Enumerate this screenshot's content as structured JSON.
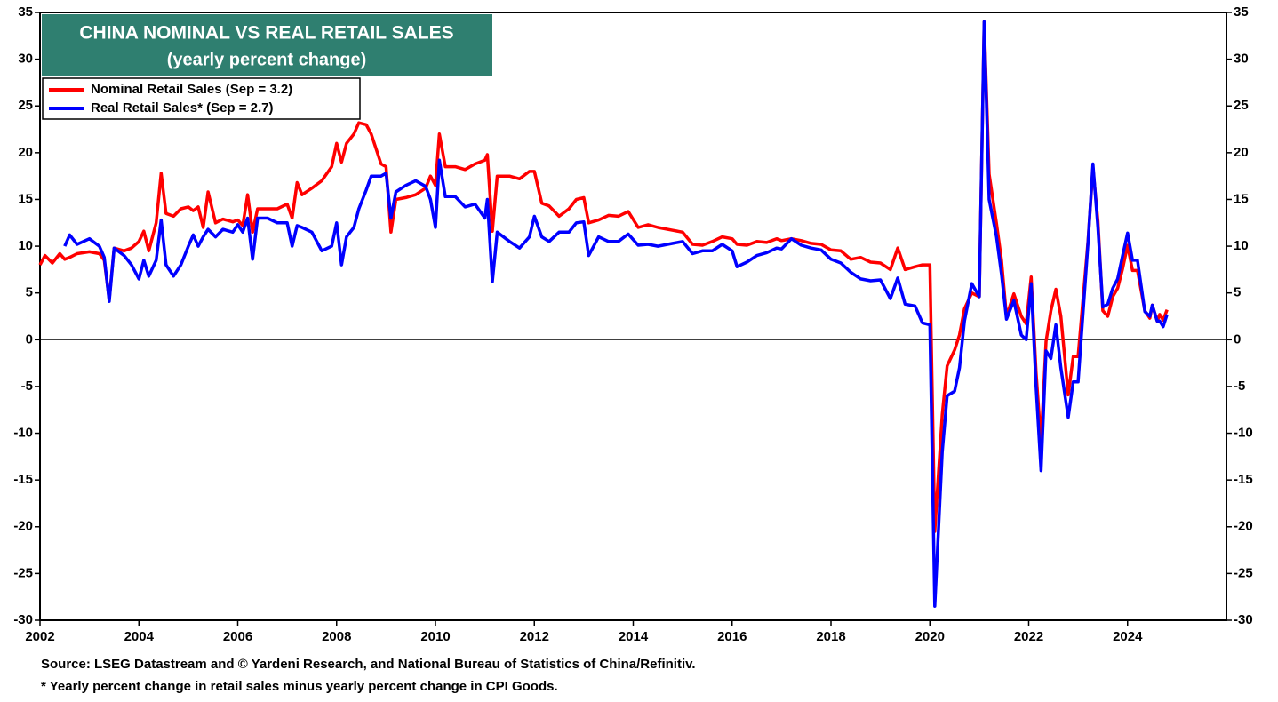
{
  "chart_data": {
    "type": "line",
    "title": "CHINA NOMINAL VS REAL RETAIL SALES",
    "subtitle": "(yearly percent change)",
    "notes": [
      "Source: LSEG Datastream and © Yardeni Research, and National Bureau of Statistics of China/Refinitiv.",
      "* Yearly percent change in retail sales minus yearly percent change in CPI Goods."
    ],
    "x": [
      2002.0,
      2002.1,
      2002.25,
      2002.4,
      2002.5,
      2002.6,
      2002.75,
      2003.0,
      2003.2,
      2003.3,
      2003.4,
      2003.5,
      2003.7,
      2003.85,
      2004.0,
      2004.1,
      2004.2,
      2004.35,
      2004.45,
      2004.55,
      2004.7,
      2004.85,
      2005.0,
      2005.1,
      2005.2,
      2005.3,
      2005.4,
      2005.55,
      2005.7,
      2005.9,
      2006.0,
      2006.1,
      2006.2,
      2006.3,
      2006.4,
      2006.6,
      2006.8,
      2007.0,
      2007.1,
      2007.2,
      2007.3,
      2007.5,
      2007.7,
      2007.9,
      2008.0,
      2008.1,
      2008.2,
      2008.35,
      2008.45,
      2008.6,
      2008.7,
      2008.9,
      2009.0,
      2009.1,
      2009.2,
      2009.4,
      2009.6,
      2009.8,
      2009.9,
      2010.0,
      2010.08,
      2010.2,
      2010.4,
      2010.6,
      2010.8,
      2011.0,
      2011.05,
      2011.15,
      2011.25,
      2011.5,
      2011.7,
      2011.9,
      2012.0,
      2012.15,
      2012.3,
      2012.5,
      2012.7,
      2012.85,
      2013.0,
      2013.1,
      2013.3,
      2013.5,
      2013.7,
      2013.9,
      2014.1,
      2014.3,
      2014.5,
      2014.8,
      2015.0,
      2015.2,
      2015.4,
      2015.6,
      2015.8,
      2016.0,
      2016.1,
      2016.3,
      2016.5,
      2016.7,
      2016.9,
      2017.0,
      2017.2,
      2017.4,
      2017.6,
      2017.8,
      2018.0,
      2018.2,
      2018.4,
      2018.6,
      2018.8,
      2019.0,
      2019.2,
      2019.35,
      2019.5,
      2019.7,
      2019.85,
      2020.0,
      2020.1,
      2020.25,
      2020.35,
      2020.5,
      2020.6,
      2020.7,
      2020.85,
      2021.0,
      2021.1,
      2021.2,
      2021.35,
      2021.45,
      2021.55,
      2021.7,
      2021.85,
      2021.95,
      2022.05,
      2022.15,
      2022.25,
      2022.35,
      2022.45,
      2022.55,
      2022.65,
      2022.8,
      2022.9,
      2023.0,
      2023.2,
      2023.3,
      2023.4,
      2023.5,
      2023.6,
      2023.7,
      2023.8,
      2023.9,
      2024.0,
      2024.1,
      2024.2,
      2024.35,
      2024.45,
      2024.5,
      2024.6,
      2024.65,
      2024.72,
      2024.8
    ],
    "series": [
      {
        "name": "Nominal Retail Sales (Sep = 3.2)",
        "color": "#ff0000",
        "values": [
          8,
          9,
          8.2,
          9.2,
          8.6,
          8.8,
          9.2,
          9.4,
          9.2,
          8.5,
          4.3,
          9.8,
          9.5,
          9.8,
          10.5,
          11.6,
          9.5,
          12.5,
          17.8,
          13.5,
          13.2,
          14,
          14.2,
          13.8,
          14.2,
          12,
          15.8,
          12.5,
          12.9,
          12.6,
          12.8,
          12.2,
          15.5,
          11.5,
          14,
          14,
          14,
          14.5,
          13,
          16.8,
          15.5,
          16.2,
          17,
          18.5,
          21,
          19,
          21,
          22,
          23.2,
          23,
          22,
          18.8,
          18.5,
          11.5,
          15,
          15.2,
          15.5,
          16.2,
          17.5,
          16.5,
          22,
          18.5,
          18.5,
          18.2,
          18.8,
          19.2,
          19.8,
          11.6,
          17.5,
          17.5,
          17.2,
          18,
          18,
          14.6,
          14.3,
          13.2,
          14,
          15,
          15.2,
          12.5,
          12.8,
          13.3,
          13.2,
          13.7,
          12,
          12.3,
          12,
          11.7,
          11.5,
          10.2,
          10.1,
          10.5,
          11,
          10.8,
          10.2,
          10.1,
          10.5,
          10.4,
          10.8,
          10.6,
          10.8,
          10.6,
          10.3,
          10.2,
          9.6,
          9.5,
          8.6,
          8.8,
          8.3,
          8.2,
          7.5,
          9.8,
          7.5,
          7.8,
          8,
          8,
          -20.5,
          -8,
          -2.8,
          -1.1,
          0.5,
          3.3,
          5,
          4.6,
          34,
          17.7,
          12.4,
          8.5,
          2.5,
          4.9,
          2.5,
          1.7,
          6.7,
          -3.5,
          -11,
          -0.2,
          3.1,
          5.4,
          2.5,
          -5.9,
          -1.8,
          -1.8,
          10.6,
          18.4,
          12.7,
          3.1,
          2.5,
          4.6,
          5.5,
          7.6,
          10.1,
          7.4,
          7.4,
          3.1,
          2.3,
          3.7,
          2,
          2.7,
          2.1,
          3.2
        ]
      },
      {
        "name": "Real Retail Sales* (Sep = 2.7)",
        "color": "#0000ff",
        "values": [
          null,
          null,
          null,
          null,
          10,
          11.2,
          10.2,
          10.8,
          10,
          8.8,
          4.1,
          9.8,
          9,
          8,
          6.5,
          8.5,
          6.8,
          8.5,
          12.8,
          8,
          6.8,
          8,
          10,
          11.2,
          10,
          11,
          11.8,
          11,
          11.8,
          11.5,
          12.3,
          11.5,
          13,
          8.6,
          13,
          13,
          12.5,
          12.5,
          10,
          12.2,
          12,
          11.5,
          9.5,
          10,
          12.5,
          8,
          11,
          12,
          14,
          16,
          17.5,
          17.5,
          17.8,
          13,
          15.8,
          16.5,
          17,
          16.4,
          15,
          12,
          19.2,
          15.3,
          15.3,
          14.2,
          14.5,
          13,
          15,
          6.2,
          11.5,
          10.5,
          9.8,
          11,
          13.2,
          11,
          10.5,
          11.5,
          11.5,
          12.5,
          12.6,
          9,
          11,
          10.5,
          10.5,
          11.3,
          10.1,
          10.2,
          10,
          10.3,
          10.5,
          9.2,
          9.5,
          9.5,
          10.2,
          9.5,
          7.8,
          8.3,
          9,
          9.3,
          9.8,
          9.7,
          10.8,
          10.1,
          9.8,
          9.6,
          8.6,
          8.2,
          7.2,
          6.5,
          6.3,
          6.4,
          4.4,
          6.6,
          3.8,
          3.6,
          1.8,
          1.6,
          -28.5,
          -12,
          -6,
          -5.5,
          -3,
          2,
          6,
          4.6,
          34,
          15,
          11,
          7,
          2.2,
          4.2,
          0.5,
          0,
          6,
          -5,
          -14,
          -1.2,
          -2,
          1.6,
          -3,
          -8.3,
          -4.5,
          -4.5,
          10.4,
          18.8,
          12,
          3.5,
          3.8,
          5.5,
          6.5,
          9,
          11.4,
          8.5,
          8.5,
          3,
          2.5,
          3.7,
          2,
          2,
          1.4,
          2.7
        ]
      }
    ],
    "xlim": [
      2002,
      2026
    ],
    "xticks": [
      2002,
      2004,
      2006,
      2008,
      2010,
      2012,
      2014,
      2016,
      2018,
      2020,
      2022,
      2024
    ],
    "ylim": [
      -30,
      35
    ],
    "yticks": [
      -30,
      -25,
      -20,
      -15,
      -10,
      -5,
      0,
      5,
      10,
      15,
      20,
      25,
      30,
      35
    ],
    "legend": "upper left"
  }
}
